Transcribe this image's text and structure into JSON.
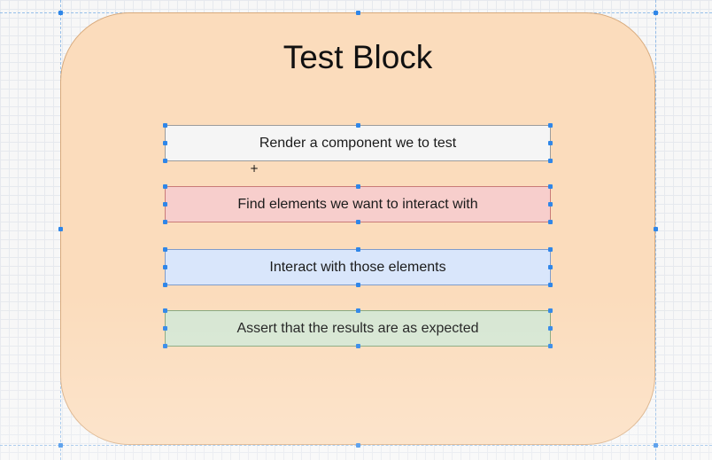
{
  "diagram": {
    "title": "Test Block",
    "steps": [
      {
        "label": "Render a component we to test",
        "fill": "#f5f5f5",
        "stroke": "#9c9c9c"
      },
      {
        "label": "Find elements we want to interact with",
        "fill": "#f7cecc",
        "stroke": "#c97b78"
      },
      {
        "label": "Interact with those elements",
        "fill": "#d9e6fb",
        "stroke": "#7e9ccb"
      },
      {
        "label": "Assert that the results are as expected",
        "fill": "#d6e6d2",
        "stroke": "#86a77c"
      }
    ],
    "container_fill": "#fbdcbc",
    "selection_color": "#2f86e8"
  }
}
